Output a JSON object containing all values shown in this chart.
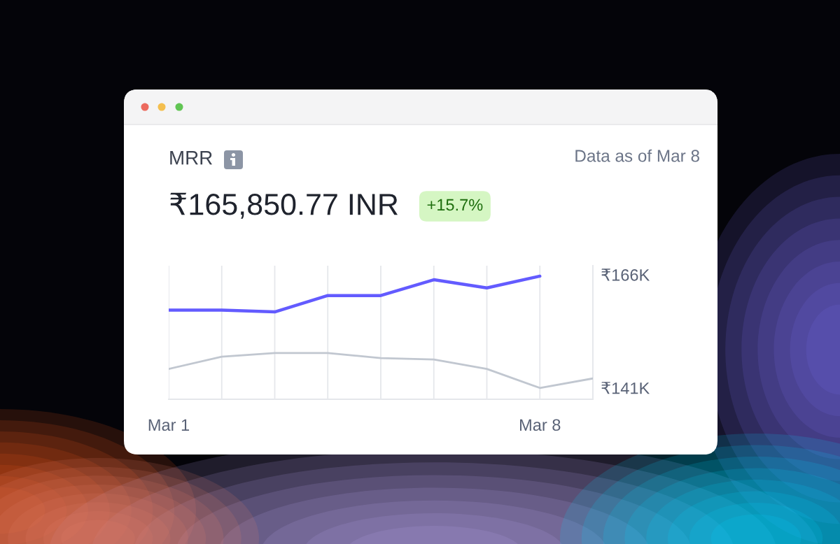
{
  "chart_data": {
    "type": "line",
    "title": "MRR",
    "subtitle": "₹165,850.77 INR",
    "annotations": [
      "+15.7%",
      "Data as of Mar 8"
    ],
    "categories": [
      "Mar 1",
      null,
      null,
      null,
      null,
      null,
      null,
      "Mar 8",
      null
    ],
    "series": [
      {
        "color": "#635bff",
        "values": [
          158200,
          158200,
          157800,
          161400,
          161400,
          164900,
          163100,
          165700,
          null
        ]
      },
      {
        "color": "#c1c7d0",
        "values": [
          145200,
          147900,
          148700,
          148700,
          147600,
          147300,
          145200,
          141000,
          143100
        ]
      }
    ],
    "ylim": [
      138500,
      168000
    ],
    "yticks": [
      {
        "value": 166000,
        "label": "₹166K"
      },
      {
        "value": 141000,
        "label": "₹141K"
      }
    ],
    "grid": "x"
  }
}
